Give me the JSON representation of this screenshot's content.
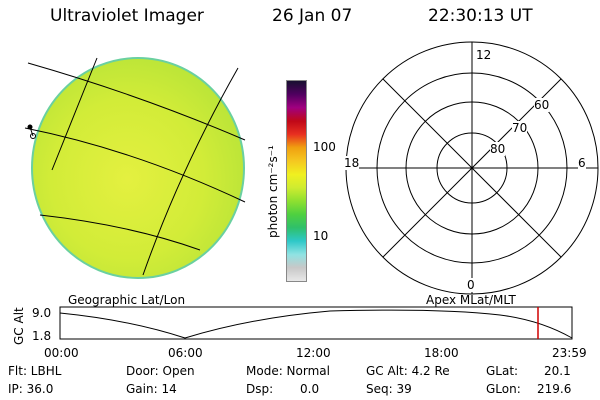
{
  "header": {
    "title": "Ultraviolet Imager",
    "date": "26 Jan 07",
    "time": "22:30:13 UT"
  },
  "left_panel": {
    "label": "Geographic Lat/Lon",
    "colors": {
      "disk": "#d4ec3a",
      "grid": "#000000"
    }
  },
  "colorbar": {
    "unit_label": "photon cm⁻²s⁻¹",
    "tick_100": "100",
    "tick_10": "10",
    "colors": [
      "#e8e8e8",
      "#c8c8c8",
      "#8fe3e3",
      "#2ec8c8",
      "#2fc06a",
      "#4fd040",
      "#8fe030",
      "#cfec30",
      "#f0f020",
      "#f5c820",
      "#f0a010",
      "#e83020",
      "#c00818",
      "#a00080",
      "#500060",
      "#181030"
    ]
  },
  "polar": {
    "label": "Apex MLat/MLT",
    "mlt_12": "12",
    "mlt_18": "18",
    "mlt_6": "6",
    "mlt_0": "0",
    "lat_60": "60",
    "lat_70": "70",
    "lat_80": "80"
  },
  "altitude_plot": {
    "y_label": "GC Alt",
    "y_max": "9.0",
    "y_min": "1.8",
    "x_ticks": [
      "00:00",
      "06:00",
      "12:00",
      "18:00",
      "23:59"
    ],
    "current_marker_color": "#d00000"
  },
  "info": {
    "flt": "Flt: LBHL",
    "ip": "IP: 36.0",
    "door": "Door: Open",
    "gain": "Gain: 14",
    "mode": "Mode: Normal",
    "dsp": "Dsp:",
    "dsp_val": "0.0",
    "gcalt": "GC Alt: 4.2 Re",
    "seq": "Seq: 39",
    "glat": "GLat:",
    "glat_val": "20.1",
    "glon": "GLon:",
    "glon_val": "219.6"
  }
}
